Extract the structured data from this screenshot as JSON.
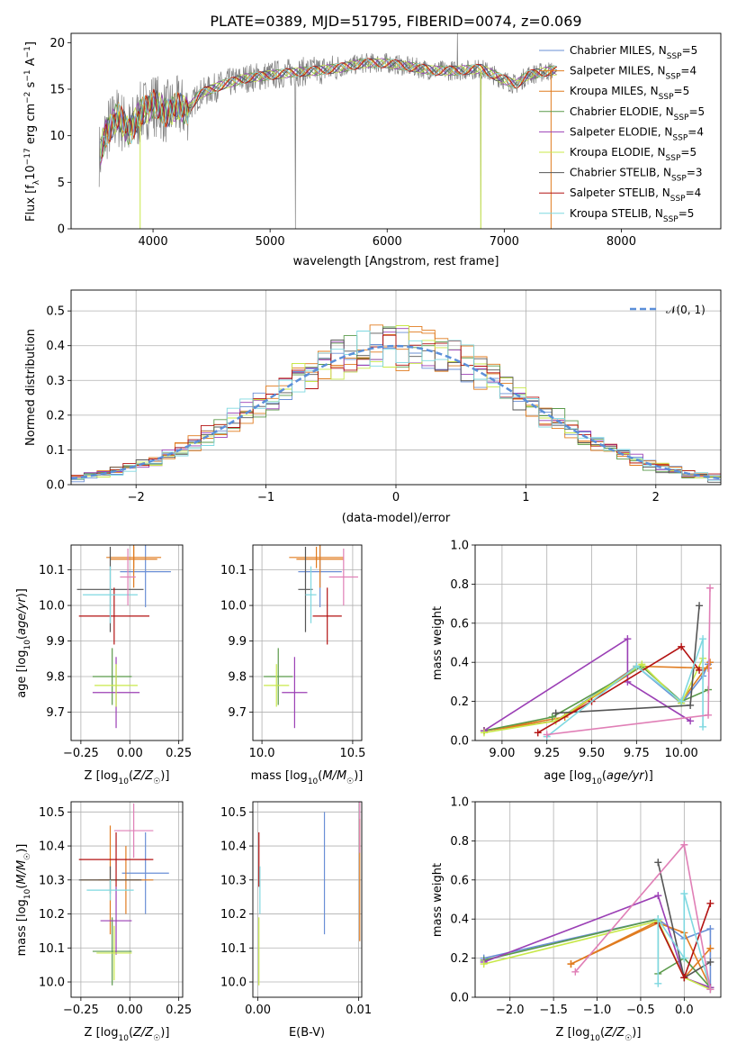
{
  "title": "PLATE=0389, MJD=51795, FIBERID=0074, z=0.069",
  "colors": {
    "chabrier_miles": "#6a8fd6",
    "salpeter_miles": "#e07b1f",
    "kroupa_miles": "#e07b1f",
    "chabrier_elodie": "#5a9a4a",
    "salpeter_elodie": "#9b3fb5",
    "kroupa_elodie": "#c8e84a",
    "chabrier_stelib": "#555555",
    "salpeter_stelib": "#b31212",
    "kroupa_stelib": "#7fd8e0",
    "pink": "#e07fb6",
    "observed": "#808080",
    "normal": "#5b8fd9"
  },
  "chart_data": [
    {
      "id": "spectrum",
      "type": "line",
      "title": "PLATE=0389, MJD=51795, FIBERID=0074, z=0.069",
      "xlabel": "wavelength [Angstrom, rest frame]",
      "ylabel": "Flux [fλ10⁻¹⁷ erg cm⁻² s⁻¹ A⁻¹]",
      "xlim": [
        3300,
        8850
      ],
      "ylim": [
        0,
        21
      ],
      "xticks": [
        4000,
        5000,
        6000,
        7000,
        8000
      ],
      "yticks": [
        0,
        5,
        10,
        15,
        20
      ],
      "legend_position": "top-right",
      "legend": [
        "Chabrier MILES, N_SSP=5",
        "Salpeter MILES, N_SSP=4",
        "Kroupa MILES, N_SSP=5",
        "Chabrier ELODIE, N_SSP=5",
        "Salpeter ELODIE, N_SSP=4",
        "Kroupa ELODIE, N_SSP=5",
        "Chabrier STELIB, N_SSP=3",
        "Salpeter STELIB, N_SSP=4",
        "Kroupa STELIB, N_SSP=5"
      ],
      "model_continuum": {
        "x": [
          3550,
          3600,
          3700,
          3800,
          3900,
          4000,
          4100,
          4200,
          4300,
          4400,
          4600,
          4800,
          5000,
          5200,
          5400,
          5600,
          5800,
          6000,
          6200,
          6400,
          6600,
          6800,
          7000,
          7100,
          7200,
          7400
        ],
        "y": [
          8,
          10.5,
          12,
          10.5,
          12.5,
          13.5,
          12.5,
          13,
          12.8,
          14.5,
          15.5,
          16.2,
          16.5,
          16.8,
          17,
          17.3,
          17.8,
          17.8,
          17.4,
          17,
          17,
          17.2,
          16,
          15.5,
          16.5,
          17
        ]
      }
    },
    {
      "id": "residuals",
      "type": "step",
      "xlabel": "(data-model)/error",
      "ylabel": "Normed distribution",
      "xlim": [
        -2.5,
        2.5
      ],
      "ylim": [
        0,
        0.56
      ],
      "xticks": [
        -2,
        -1,
        0,
        1,
        2
      ],
      "yticks": [
        0.0,
        0.1,
        0.2,
        0.3,
        0.4,
        0.5
      ],
      "legend_position": "top-right",
      "legend": [
        "𝒩(0, 1)"
      ],
      "bin_width": 0.1
    },
    {
      "id": "age_vs_Z",
      "type": "errorbar",
      "xlabel": "Z [log₁₀(Z/Z☉)]",
      "ylabel": "age  [log₁₀(age/yr)]",
      "xlim": [
        -0.3,
        0.27
      ],
      "ylim": [
        9.62,
        10.17
      ],
      "xticks": [
        -0.25,
        0.0,
        0.25
      ],
      "yticks": [
        9.7,
        9.8,
        9.9,
        10.0,
        10.1
      ],
      "points": [
        {
          "c": "chabrier_miles",
          "x": 0.08,
          "y": 10.095,
          "xe": 0.13,
          "ye": 0.1
        },
        {
          "c": "salpeter_miles",
          "x": 0.02,
          "y": 10.135,
          "xe": 0.14,
          "ye": 0.03
        },
        {
          "c": "kroupa_miles",
          "x": 0.02,
          "y": 10.13,
          "xe": 0.12,
          "ye": 0.08
        },
        {
          "c": "chabrier_elodie",
          "x": -0.09,
          "y": 9.8,
          "xe": 0.1,
          "ye": 0.08
        },
        {
          "c": "salpeter_elodie",
          "x": -0.07,
          "y": 9.755,
          "xe": 0.12,
          "ye": 0.1
        },
        {
          "c": "kroupa_elodie",
          "x": -0.07,
          "y": 9.775,
          "xe": 0.11,
          "ye": 0.06
        },
        {
          "c": "chabrier_stelib",
          "x": -0.1,
          "y": 10.045,
          "xe": 0.17,
          "ye": 0.12
        },
        {
          "c": "salpeter_stelib",
          "x": -0.08,
          "y": 9.97,
          "xe": 0.18,
          "ye": 0.08
        },
        {
          "c": "kroupa_stelib",
          "x": -0.1,
          "y": 10.03,
          "xe": 0.14,
          "ye": 0.08
        },
        {
          "c": "pink",
          "x": -0.01,
          "y": 10.08,
          "xe": 0.04,
          "ye": 0.08
        }
      ]
    },
    {
      "id": "age_vs_mass",
      "type": "errorbar",
      "xlabel": "mass [log₁₀(M/M☉)]",
      "ylabel": "",
      "xlim": [
        9.95,
        10.55
      ],
      "ylim": [
        9.62,
        10.17
      ],
      "xticks": [
        10.0,
        10.5
      ],
      "yticks": [
        9.7,
        9.8,
        9.9,
        10.0,
        10.1
      ],
      "points": [
        {
          "c": "chabrier_miles",
          "x": 10.32,
          "y": 10.095,
          "xe": 0.12,
          "ye": 0.1
        },
        {
          "c": "salpeter_miles",
          "x": 10.3,
          "y": 10.135,
          "xe": 0.15,
          "ye": 0.03
        },
        {
          "c": "kroupa_miles",
          "x": 10.32,
          "y": 10.13,
          "xe": 0.13,
          "ye": 0.08
        },
        {
          "c": "chabrier_elodie",
          "x": 10.09,
          "y": 9.8,
          "xe": 0.08,
          "ye": 0.08
        },
        {
          "c": "salpeter_elodie",
          "x": 10.18,
          "y": 9.755,
          "xe": 0.07,
          "ye": 0.1
        },
        {
          "c": "kroupa_elodie",
          "x": 10.08,
          "y": 9.775,
          "xe": 0.07,
          "ye": 0.06
        },
        {
          "c": "chabrier_stelib",
          "x": 10.24,
          "y": 10.045,
          "xe": 0.04,
          "ye": 0.12
        },
        {
          "c": "salpeter_stelib",
          "x": 10.36,
          "y": 9.97,
          "xe": 0.08,
          "ye": 0.08
        },
        {
          "c": "kroupa_stelib",
          "x": 10.27,
          "y": 10.03,
          "xe": 0.03,
          "ye": 0.08
        },
        {
          "c": "pink",
          "x": 10.45,
          "y": 10.08,
          "xe": 0.08,
          "ye": 0.08
        }
      ]
    },
    {
      "id": "massweight_vs_age",
      "type": "line",
      "xlabel": "age  [log₁₀(age/yr)]",
      "ylabel": "mass weight",
      "xlim": [
        8.85,
        10.22
      ],
      "ylim": [
        0,
        1.0
      ],
      "xticks": [
        9.0,
        9.25,
        9.5,
        9.75,
        10.0
      ],
      "yticks": [
        0.0,
        0.2,
        0.4,
        0.6,
        0.8,
        1.0
      ],
      "series": [
        {
          "c": "chabrier_miles",
          "x": [
            8.9,
            9.3,
            9.75,
            10.0,
            10.12,
            10.15
          ],
          "y": [
            0.05,
            0.1,
            0.38,
            0.19,
            0.33,
            0.39
          ]
        },
        {
          "c": "salpeter_miles",
          "x": [
            8.9,
            9.35,
            9.75,
            10.15
          ],
          "y": [
            0.05,
            0.12,
            0.38,
            0.37
          ]
        },
        {
          "c": "kroupa_miles",
          "x": [
            8.9,
            9.3,
            9.78,
            10.0,
            10.16
          ],
          "y": [
            0.05,
            0.1,
            0.38,
            0.2,
            0.4
          ]
        },
        {
          "c": "chabrier_elodie",
          "x": [
            8.9,
            9.28,
            9.78,
            10.0,
            10.15
          ],
          "y": [
            0.05,
            0.12,
            0.38,
            0.2,
            0.26
          ]
        },
        {
          "c": "salpeter_elodie",
          "x": [
            8.9,
            9.7,
            9.7,
            10.05
          ],
          "y": [
            0.05,
            0.52,
            0.3,
            0.1
          ]
        },
        {
          "c": "kroupa_elodie",
          "x": [
            8.9,
            9.3,
            9.78,
            10.0,
            10.12
          ],
          "y": [
            0.04,
            0.1,
            0.39,
            0.19,
            0.42
          ]
        },
        {
          "c": "chabrier_stelib",
          "x": [
            9.3,
            10.05,
            10.1
          ],
          "y": [
            0.14,
            0.18,
            0.69
          ]
        },
        {
          "c": "salpeter_stelib",
          "x": [
            9.2,
            9.5,
            10.0,
            10.1
          ],
          "y": [
            0.04,
            0.2,
            0.48,
            0.36
          ]
        },
        {
          "c": "kroupa_stelib",
          "x": [
            9.25,
            9.75,
            10.0,
            10.12,
            10.12
          ],
          "y": [
            0.02,
            0.38,
            0.2,
            0.52,
            0.07
          ]
        },
        {
          "c": "pink",
          "x": [
            9.25,
            10.15,
            10.16
          ],
          "y": [
            0.03,
            0.13,
            0.78
          ]
        }
      ]
    },
    {
      "id": "mass_vs_Z",
      "type": "errorbar",
      "xlabel": "Z [log₁₀(Z/Z☉)]",
      "ylabel": "mass [log₁₀(M/M☉)]",
      "xlim": [
        -0.3,
        0.27
      ],
      "ylim": [
        9.955,
        10.53
      ],
      "xticks": [
        -0.25,
        0.0,
        0.25
      ],
      "yticks": [
        10.0,
        10.1,
        10.2,
        10.3,
        10.4,
        10.5
      ],
      "points": [
        {
          "c": "chabrier_miles",
          "x": 0.08,
          "y": 10.32,
          "xe": 0.12,
          "ye": 0.12
        },
        {
          "c": "salpeter_miles",
          "x": -0.1,
          "y": 10.3,
          "xe": 0.15,
          "ye": 0.16
        },
        {
          "c": "kroupa_miles",
          "x": -0.02,
          "y": 10.3,
          "xe": 0.14,
          "ye": 0.1
        },
        {
          "c": "chabrier_elodie",
          "x": -0.09,
          "y": 10.09,
          "xe": 0.1,
          "ye": 0.1
        },
        {
          "c": "salpeter_elodie",
          "x": -0.07,
          "y": 10.18,
          "xe": 0.08,
          "ye": 0.1
        },
        {
          "c": "kroupa_elodie",
          "x": -0.08,
          "y": 10.085,
          "xe": 0.09,
          "ye": 0.08
        },
        {
          "c": "chabrier_stelib",
          "x": -0.1,
          "y": 10.3,
          "xe": 0.16,
          "ye": 0.04
        },
        {
          "c": "salpeter_stelib",
          "x": -0.07,
          "y": 10.36,
          "xe": 0.19,
          "ye": 0.08
        },
        {
          "c": "kroupa_stelib",
          "x": -0.1,
          "y": 10.27,
          "xe": 0.12,
          "ye": 0.03
        },
        {
          "c": "pink",
          "x": 0.02,
          "y": 10.445,
          "xe": 0.1,
          "ye": 0.08
        }
      ]
    },
    {
      "id": "mass_vs_ebv",
      "type": "errorbar",
      "xlabel": "E(B-V)",
      "ylabel": "",
      "xlim": [
        -0.0005,
        0.0103
      ],
      "ylim": [
        9.955,
        10.53
      ],
      "xticks": [
        0.0,
        0.01
      ],
      "yticks": [
        10.0,
        10.1,
        10.2,
        10.3,
        10.4,
        10.5
      ],
      "points": [
        {
          "c": "chabrier_miles",
          "x": 0.0066,
          "y": 10.32,
          "xe": 0,
          "ye": 0.18
        },
        {
          "c": "salpeter_miles",
          "x": 0.0101,
          "y": 10.3,
          "xe": 0,
          "ye": 0.18
        },
        {
          "c": "salpeter_stelib",
          "x": 0.0001,
          "y": 10.36,
          "xe": 0,
          "ye": 0.08
        },
        {
          "c": "kroupa_elodie",
          "x": 0.0001,
          "y": 10.09,
          "xe": 0,
          "ye": 0.1
        },
        {
          "c": "kroupa_stelib",
          "x": 0.0002,
          "y": 10.27,
          "xe": 0,
          "ye": 0.07
        },
        {
          "c": "pink",
          "x": 0.0101,
          "y": 10.46,
          "xe": 0,
          "ye": 0.08
        }
      ]
    },
    {
      "id": "massweight_vs_Z",
      "type": "line",
      "xlabel": "Z [log₁₀(Z/Z☉)]",
      "ylabel": "mass weight",
      "xlim": [
        -2.4,
        0.42
      ],
      "ylim": [
        0,
        1.0
      ],
      "xticks": [
        -2.0,
        -1.5,
        -1.0,
        -0.5,
        0.0
      ],
      "yticks": [
        0.0,
        0.2,
        0.4,
        0.6,
        0.8,
        1.0
      ],
      "series": [
        {
          "c": "chabrier_miles",
          "x": [
            -2.3,
            -0.3,
            0.0,
            0.3,
            0.3
          ],
          "y": [
            0.2,
            0.4,
            0.3,
            0.35,
            0.05
          ]
        },
        {
          "c": "salpeter_miles",
          "x": [
            -1.3,
            -0.3,
            0.0,
            0.3
          ],
          "y": [
            0.17,
            0.39,
            0.1,
            0.25
          ]
        },
        {
          "c": "kroupa_miles",
          "x": [
            -1.3,
            -0.3,
            0.0,
            0.3
          ],
          "y": [
            0.17,
            0.38,
            0.33,
            0.05
          ]
        },
        {
          "c": "chabrier_elodie",
          "x": [
            -2.3,
            -0.3,
            -0.3,
            0.0,
            0.3
          ],
          "y": [
            0.19,
            0.4,
            0.12,
            0.2,
            0.05
          ]
        },
        {
          "c": "salpeter_elodie",
          "x": [
            -2.3,
            -0.3,
            0.0,
            0.3
          ],
          "y": [
            0.18,
            0.52,
            0.1,
            0.05
          ]
        },
        {
          "c": "kroupa_elodie",
          "x": [
            -2.3,
            -0.3,
            0.0,
            0.3
          ],
          "y": [
            0.17,
            0.39,
            0.1,
            0.04
          ]
        },
        {
          "c": "chabrier_stelib",
          "x": [
            -0.3,
            0.0,
            0.3
          ],
          "y": [
            0.69,
            0.1,
            0.18
          ]
        },
        {
          "c": "salpeter_stelib",
          "x": [
            -0.3,
            0.0,
            0.3
          ],
          "y": [
            0.38,
            0.1,
            0.48
          ]
        },
        {
          "c": "kroupa_stelib",
          "x": [
            -0.3,
            -0.3,
            0.0,
            0.0,
            0.3
          ],
          "y": [
            0.07,
            0.4,
            0.2,
            0.53,
            0.04
          ]
        },
        {
          "c": "pink",
          "x": [
            -1.25,
            0.0,
            0.3
          ],
          "y": [
            0.13,
            0.78,
            0.04
          ]
        }
      ]
    }
  ]
}
